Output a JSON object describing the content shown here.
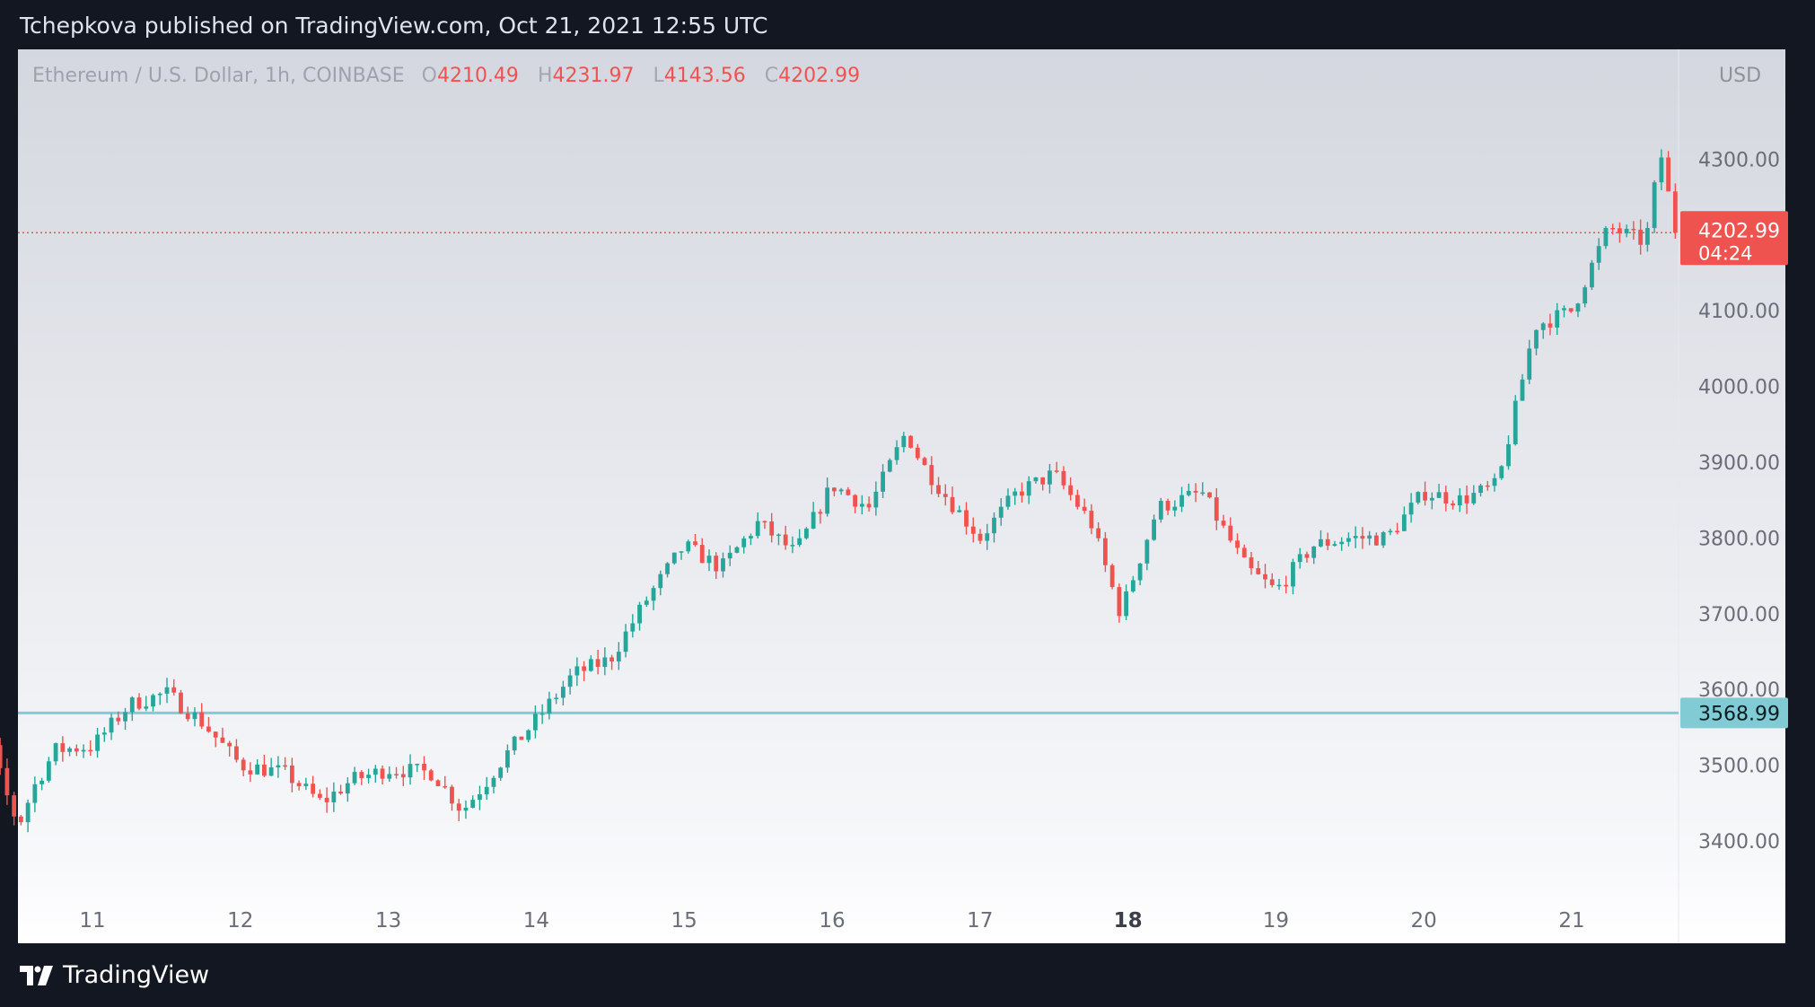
{
  "header": {
    "published_by": "Tchepkova published on TradingView.com, Oct 21, 2021 12:55 UTC"
  },
  "legend": {
    "symbol": "Ethereum / U.S. Dollar, 1h, COINBASE",
    "open_label": "O",
    "open": "4210.49",
    "high_label": "H",
    "high": "4231.97",
    "low_label": "L",
    "low": "4143.56",
    "close_label": "C",
    "close": "4202.99"
  },
  "footer": {
    "brand": "TradingView"
  },
  "colors": {
    "up": "#26a69a",
    "down": "#ef5350",
    "horizontal_line": "#80cbd4",
    "price_tag": "#ef5350",
    "hline_tag": "#80cbd4"
  },
  "chart_data": {
    "type": "candlestick",
    "symbol": "Ethereum / U.S. Dollar",
    "interval": "1h",
    "exchange": "COINBASE",
    "currency_label": "USD",
    "ylim": [
      3330,
      4430
    ],
    "y_ticks": [
      3400,
      3500,
      3600,
      3700,
      3800,
      3900,
      4000,
      4100,
      4200,
      4300
    ],
    "y_tick_labels": [
      "3400.00",
      "3500.00",
      "3600.00",
      "3700.00",
      "3800.00",
      "3900.00",
      "4000.00",
      "4100.00",
      "",
      "4300.00"
    ],
    "x_ticks": [
      "11",
      "12",
      "13",
      "14",
      "15",
      "16",
      "17",
      "18",
      "19",
      "20",
      "21"
    ],
    "x_tick_bold": "18",
    "last_price": "4202.99",
    "countdown": "04:24",
    "horizontal_line": {
      "value": 3568.99,
      "label": "3568.99"
    },
    "path": [
      [
        10.0,
        3560
      ],
      [
        10.3,
        3540
      ],
      [
        10.4,
        3470
      ],
      [
        10.5,
        3420
      ],
      [
        10.6,
        3470
      ],
      [
        10.75,
        3520
      ],
      [
        11.0,
        3525
      ],
      [
        11.25,
        3580
      ],
      [
        11.5,
        3595
      ],
      [
        11.75,
        3555
      ],
      [
        12.0,
        3500
      ],
      [
        12.3,
        3490
      ],
      [
        12.55,
        3450
      ],
      [
        12.75,
        3480
      ],
      [
        13.0,
        3495
      ],
      [
        13.3,
        3490
      ],
      [
        13.5,
        3440
      ],
      [
        13.65,
        3475
      ],
      [
        13.8,
        3515
      ],
      [
        14.0,
        3560
      ],
      [
        14.25,
        3620
      ],
      [
        14.5,
        3640
      ],
      [
        14.75,
        3720
      ],
      [
        15.0,
        3790
      ],
      [
        15.25,
        3760
      ],
      [
        15.5,
        3820
      ],
      [
        15.75,
        3780
      ],
      [
        16.0,
        3870
      ],
      [
        16.25,
        3840
      ],
      [
        16.5,
        3940
      ],
      [
        16.6,
        3900
      ],
      [
        16.75,
        3860
      ],
      [
        17.0,
        3800
      ],
      [
        17.25,
        3860
      ],
      [
        17.5,
        3885
      ],
      [
        17.75,
        3820
      ],
      [
        17.95,
        3700
      ],
      [
        18.2,
        3840
      ],
      [
        18.5,
        3860
      ],
      [
        18.8,
        3760
      ],
      [
        19.0,
        3730
      ],
      [
        19.25,
        3790
      ],
      [
        19.5,
        3800
      ],
      [
        19.75,
        3800
      ],
      [
        20.0,
        3860
      ],
      [
        20.25,
        3850
      ],
      [
        20.5,
        3870
      ],
      [
        20.75,
        4080
      ],
      [
        21.0,
        4100
      ],
      [
        21.25,
        4210
      ],
      [
        21.5,
        4190
      ],
      [
        21.6,
        4310
      ],
      [
        21.7,
        4203
      ]
    ],
    "n_candles": 250
  }
}
